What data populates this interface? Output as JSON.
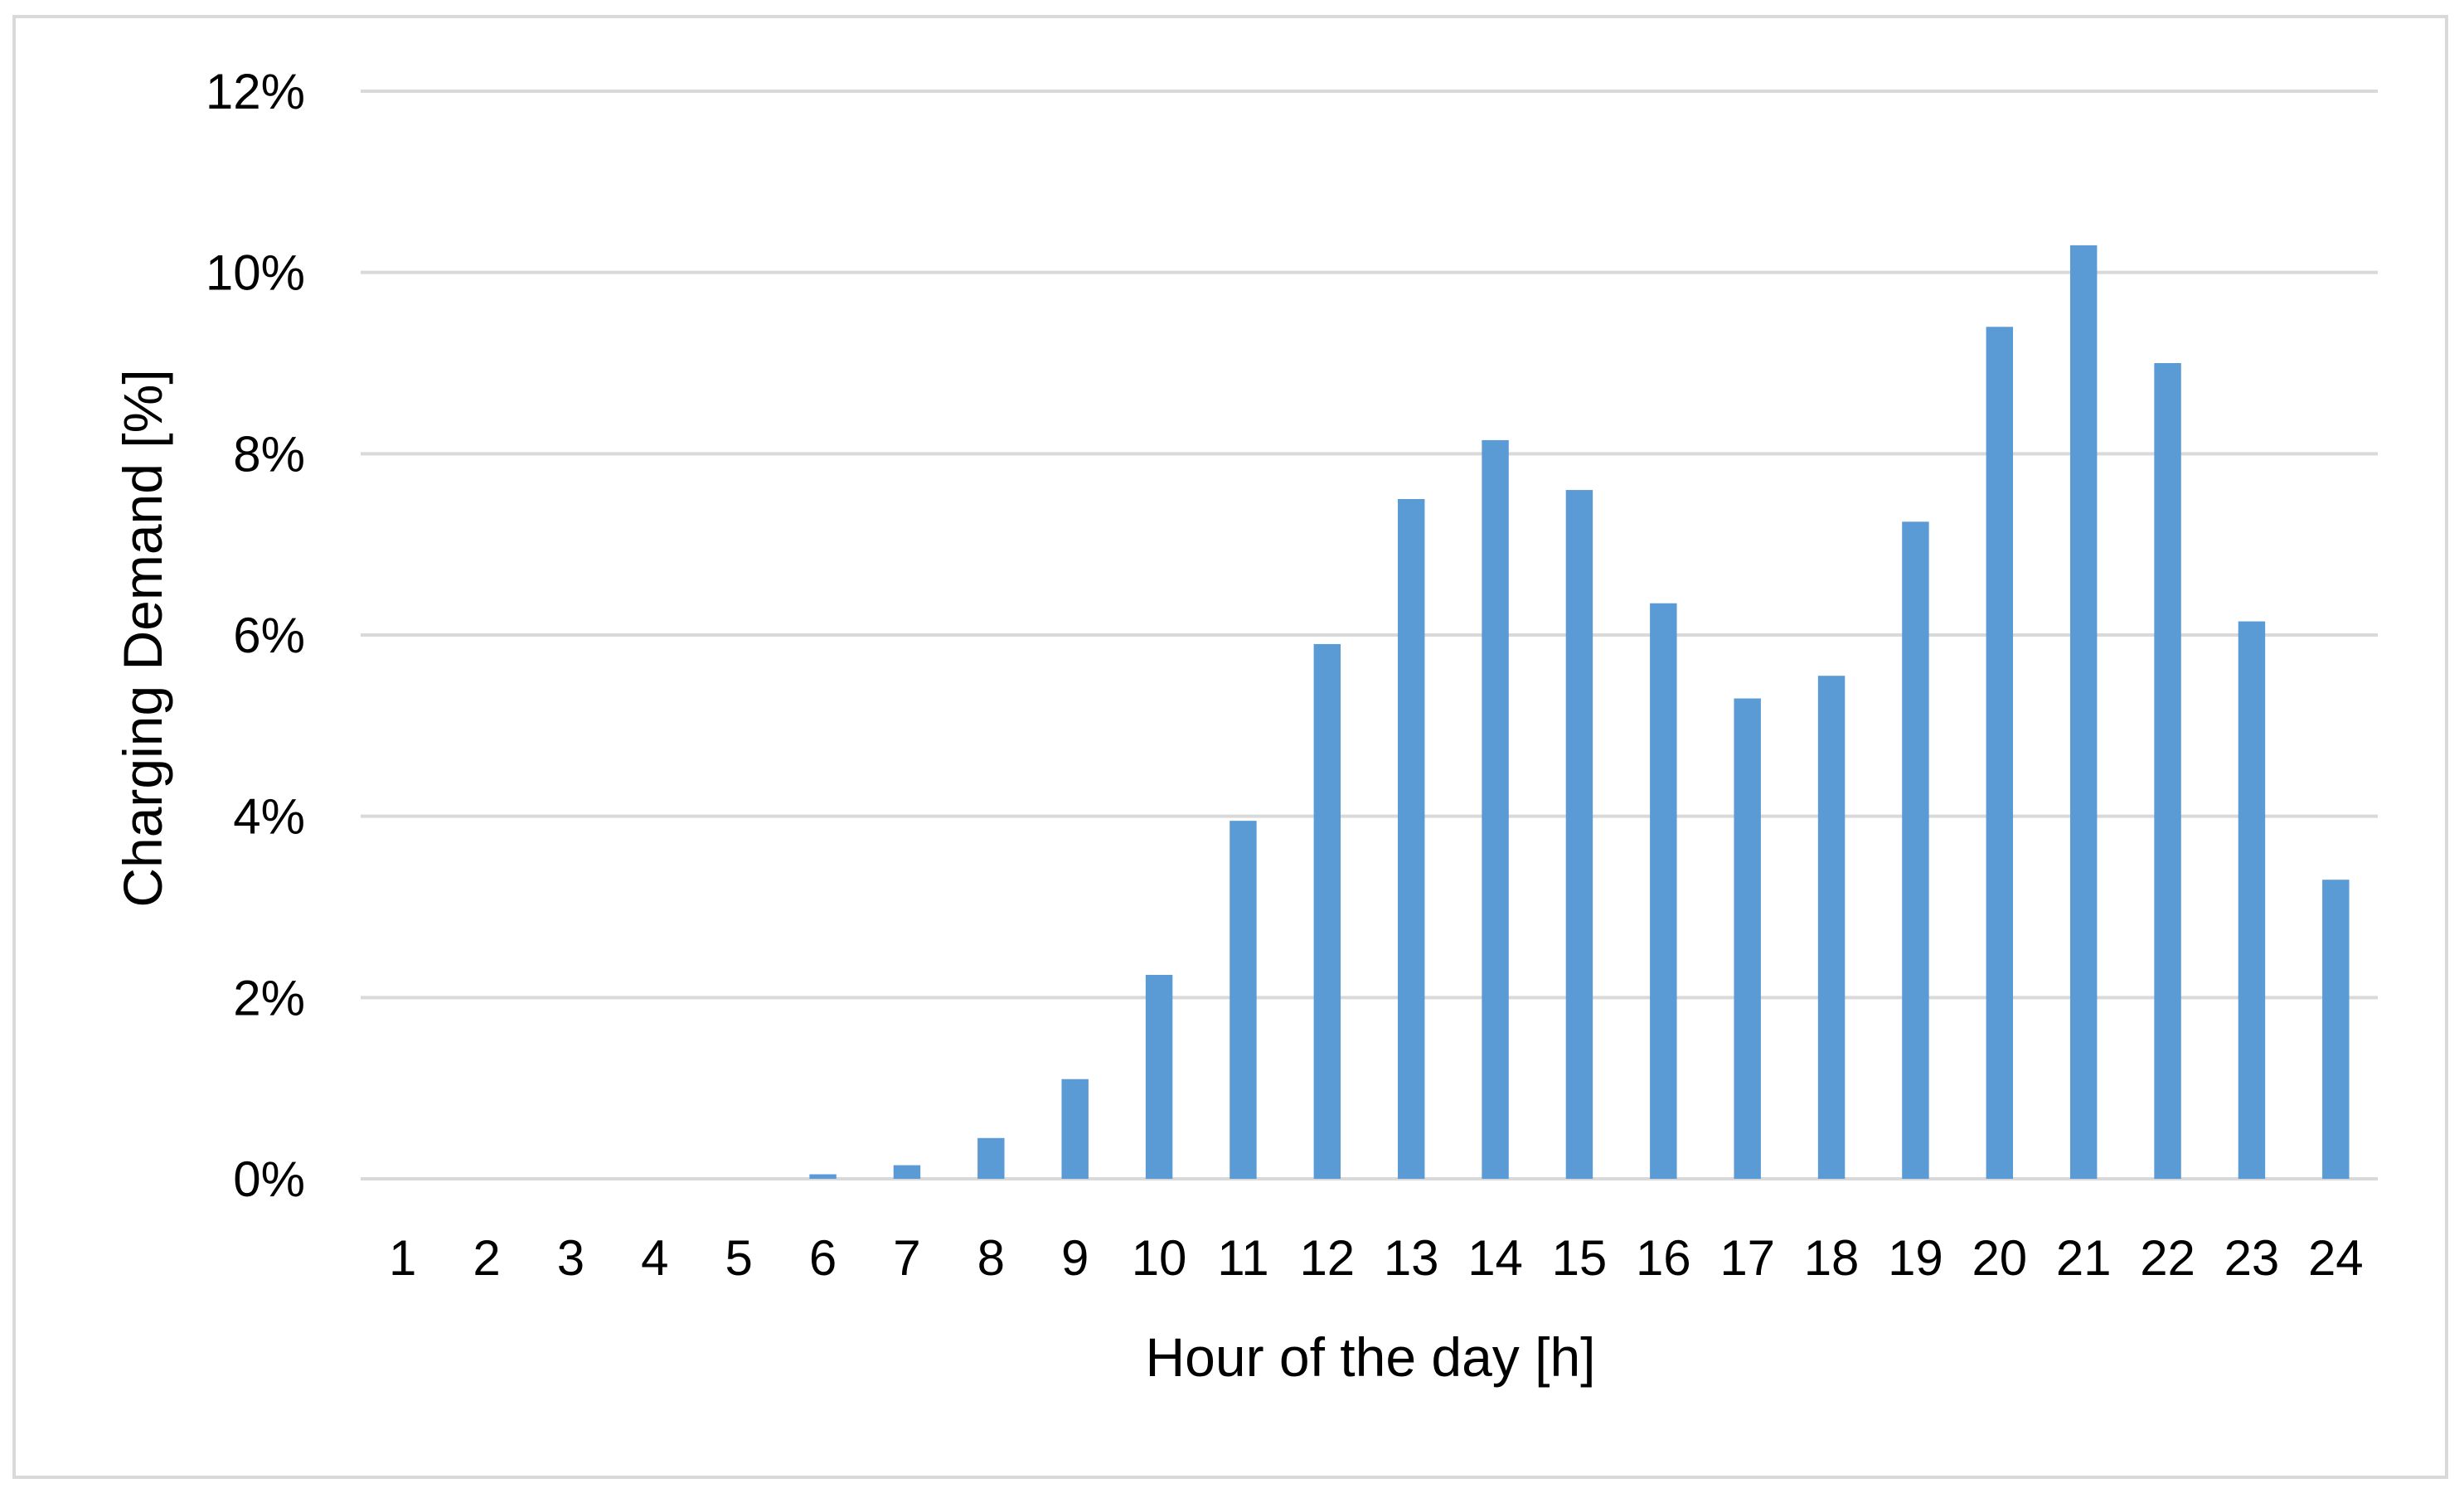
{
  "chart_data": {
    "type": "bar",
    "title": "",
    "xlabel": "Hour of the day [h]",
    "ylabel": "Charging Demand [%]",
    "categories": [
      "1",
      "2",
      "3",
      "4",
      "5",
      "6",
      "7",
      "8",
      "9",
      "10",
      "11",
      "12",
      "13",
      "14",
      "15",
      "16",
      "17",
      "18",
      "19",
      "20",
      "21",
      "22",
      "23",
      "24"
    ],
    "values": [
      0,
      0,
      0,
      0,
      0,
      0.05,
      0.15,
      0.45,
      1.1,
      2.25,
      3.95,
      5.9,
      7.5,
      8.15,
      7.6,
      6.35,
      5.3,
      5.55,
      7.25,
      9.4,
      10.3,
      9.0,
      6.15,
      3.3
    ],
    "value_unit": "%",
    "ylim": [
      0,
      12
    ],
    "yticks": [
      "0%",
      "2%",
      "4%",
      "6%",
      "8%",
      "10%",
      "12%"
    ],
    "grid": true,
    "legend": "none",
    "colors": {
      "bar": "#5B9BD5",
      "grid": "#D9D9D9",
      "frame": "#D9D9D9",
      "text": "#000000"
    }
  }
}
